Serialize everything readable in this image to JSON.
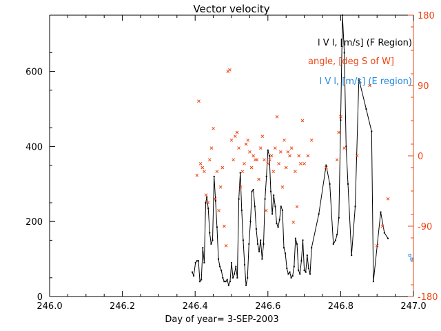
{
  "chart_data": {
    "type": "scatter",
    "title": "Vector velocity",
    "xlabel": "Day of year= 3-SEP-2003",
    "xlim": [
      246.0,
      247.0
    ],
    "ylim": [
      0,
      750
    ],
    "y2lim": [
      -180,
      180
    ],
    "x_ticks": [
      "246.0",
      "246.2",
      "246.4",
      "246.6",
      "246.8",
      "247.0"
    ],
    "y_ticks": [
      "0",
      "200",
      "400",
      "600"
    ],
    "y2_ticks": [
      "-180",
      "-90",
      "0",
      "90",
      "180"
    ],
    "colors": {
      "axis": "#000000",
      "f_region": "#000000",
      "angle": "#ee4411",
      "e_region": "#2288dd"
    },
    "legend": {
      "position": "top-right",
      "f_region": "l V l, [m/s] (F Region)",
      "angle": "angle, [deg S of W]",
      "e_region": "l V l, [m/s] (E region)"
    },
    "series": [
      {
        "name": "l V l, [m/s] (F Region)",
        "axis": "left",
        "style": "line-dots",
        "x": [
          246.392,
          246.396,
          246.401,
          246.405,
          246.409,
          246.413,
          246.417,
          246.421,
          246.425,
          246.429,
          246.432,
          246.436,
          246.44,
          246.444,
          246.448,
          246.452,
          246.456,
          246.46,
          246.464,
          246.468,
          246.472,
          246.476,
          246.48,
          246.484,
          246.488,
          246.492,
          246.496,
          246.5,
          246.504,
          246.508,
          246.512,
          246.516,
          246.52,
          246.524,
          246.528,
          246.532,
          246.536,
          246.54,
          246.544,
          246.548,
          246.552,
          246.556,
          246.56,
          246.564,
          246.568,
          246.572,
          246.576,
          246.58,
          246.584,
          246.588,
          246.592,
          246.596,
          246.6,
          246.604,
          246.608,
          246.612,
          246.616,
          246.62,
          246.624,
          246.628,
          246.632,
          246.636,
          246.64,
          246.644,
          246.648,
          246.652,
          246.656,
          246.66,
          246.664,
          246.668,
          246.672,
          246.676,
          246.68,
          246.684,
          246.688,
          246.692,
          246.696,
          246.7,
          246.704,
          246.708,
          246.712,
          246.716,
          246.72,
          246.74,
          246.76,
          246.77,
          246.78,
          246.786,
          246.79,
          246.795,
          246.8,
          246.805,
          246.81,
          246.815,
          246.82,
          246.83,
          246.84,
          246.85,
          246.87,
          246.885,
          246.89,
          246.91,
          246.92,
          246.93
        ],
        "y": [
          65,
          55,
          90,
          95,
          95,
          40,
          45,
          130,
          90,
          250,
          265,
          235,
          170,
          140,
          150,
          320,
          255,
          185,
          100,
          80,
          70,
          50,
          40,
          40,
          45,
          30,
          40,
          90,
          50,
          60,
          80,
          50,
          260,
          330,
          230,
          150,
          85,
          30,
          50,
          140,
          200,
          280,
          285,
          240,
          180,
          140,
          120,
          150,
          100,
          140,
          260,
          320,
          390,
          375,
          280,
          220,
          270,
          240,
          195,
          185,
          205,
          240,
          230,
          130,
          115,
          75,
          60,
          65,
          50,
          55,
          80,
          155,
          140,
          70,
          60,
          95,
          150,
          70,
          65,
          110,
          75,
          60,
          130,
          220,
          350,
          300,
          140,
          150,
          165,
          210,
          470,
          750,
          650,
          400,
          300,
          110,
          240,
          580,
          500,
          440,
          40,
          225,
          170,
          155
        ]
      },
      {
        "name": "angle, [deg S of W]",
        "axis": "right",
        "style": "markers-x",
        "x": [
          246.405,
          246.41,
          246.415,
          246.42,
          246.425,
          246.43,
          246.435,
          246.44,
          246.445,
          246.45,
          246.455,
          246.46,
          246.465,
          246.47,
          246.475,
          246.48,
          246.485,
          246.49,
          246.495,
          246.5,
          246.505,
          246.51,
          246.515,
          246.52,
          246.525,
          246.53,
          246.535,
          246.54,
          246.545,
          246.55,
          246.555,
          246.56,
          246.565,
          246.57,
          246.575,
          246.58,
          246.585,
          246.59,
          246.595,
          246.6,
          246.605,
          246.61,
          246.615,
          246.62,
          246.625,
          246.63,
          246.635,
          246.64,
          246.645,
          246.65,
          246.655,
          246.66,
          246.665,
          246.67,
          246.675,
          246.68,
          246.685,
          246.69,
          246.695,
          246.7,
          246.71,
          246.72,
          246.76,
          246.79,
          246.795,
          246.8,
          246.81,
          246.845,
          246.88,
          246.9,
          246.915,
          246.93
        ],
        "y": [
          -25,
          70,
          -10,
          -15,
          -20,
          -50,
          -60,
          -5,
          10,
          35,
          -55,
          -20,
          -70,
          -40,
          -15,
          -90,
          -115,
          108,
          110,
          20,
          -5,
          25,
          30,
          10,
          -40,
          -20,
          -10,
          15,
          20,
          5,
          -15,
          0,
          -5,
          -5,
          -30,
          10,
          25,
          -5,
          -70,
          -10,
          -5,
          0,
          -20,
          10,
          50,
          -10,
          5,
          -40,
          20,
          -15,
          5,
          0,
          10,
          -85,
          -20,
          -65,
          0,
          -10,
          45,
          -10,
          0,
          20,
          -15,
          -5,
          30,
          50,
          10,
          0,
          90,
          -115,
          -90,
          -55
        ]
      },
      {
        "name": "l V l, [m/s] (E region)",
        "axis": "left",
        "style": "markers-square",
        "x": [
          246.99,
          246.995
        ],
        "y": [
          110,
          100
        ]
      }
    ]
  }
}
